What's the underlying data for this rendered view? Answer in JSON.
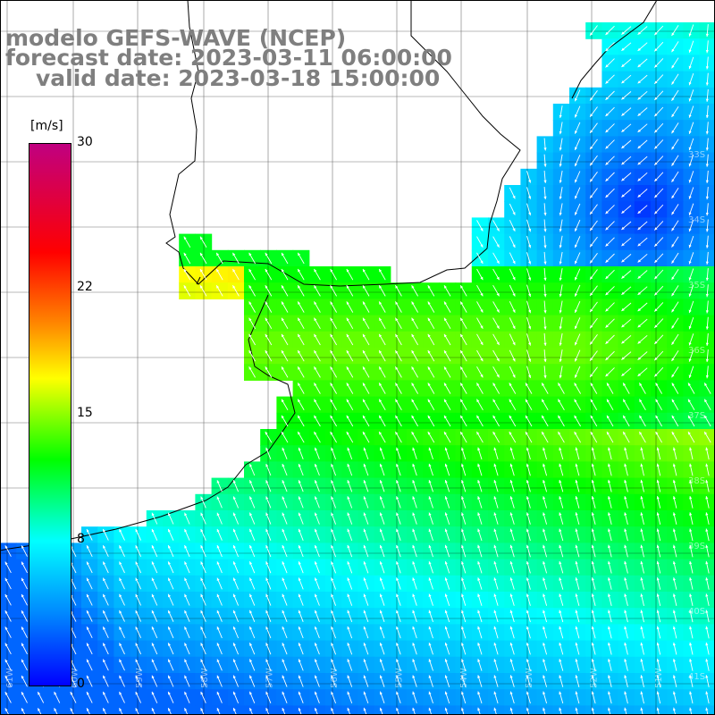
{
  "title": {
    "line1": "modelo GEFS-WAVE (NCEP)",
    "line2": "forecast date: 2023-03-11 06:00:00",
    "line3": "valid date: 2023-03-18 15:00:00"
  },
  "colorbar": {
    "unit": "[m/s]",
    "min": 0,
    "max": 30,
    "ticks": [
      {
        "value": 30,
        "label": "30"
      },
      {
        "value": 22,
        "label": "22"
      },
      {
        "value": 15,
        "label": "15"
      },
      {
        "value": 8,
        "label": "8"
      },
      {
        "value": 0,
        "label": "0"
      }
    ],
    "colors": [
      "#0000ff",
      "#0088ff",
      "#00ffff",
      "#00ff00",
      "#ffff00",
      "#ff8800",
      "#ff0000",
      "#c00080"
    ]
  },
  "grid": {
    "lat_labels": [
      "33S",
      "34S",
      "35S",
      "36S",
      "37S",
      "38S",
      "39S",
      "40S",
      "41S"
    ],
    "lon_labels": [
      "61W",
      "60W",
      "59W",
      "58W",
      "57W",
      "56W",
      "55W",
      "54W",
      "53W",
      "52W",
      "51W"
    ]
  }
}
